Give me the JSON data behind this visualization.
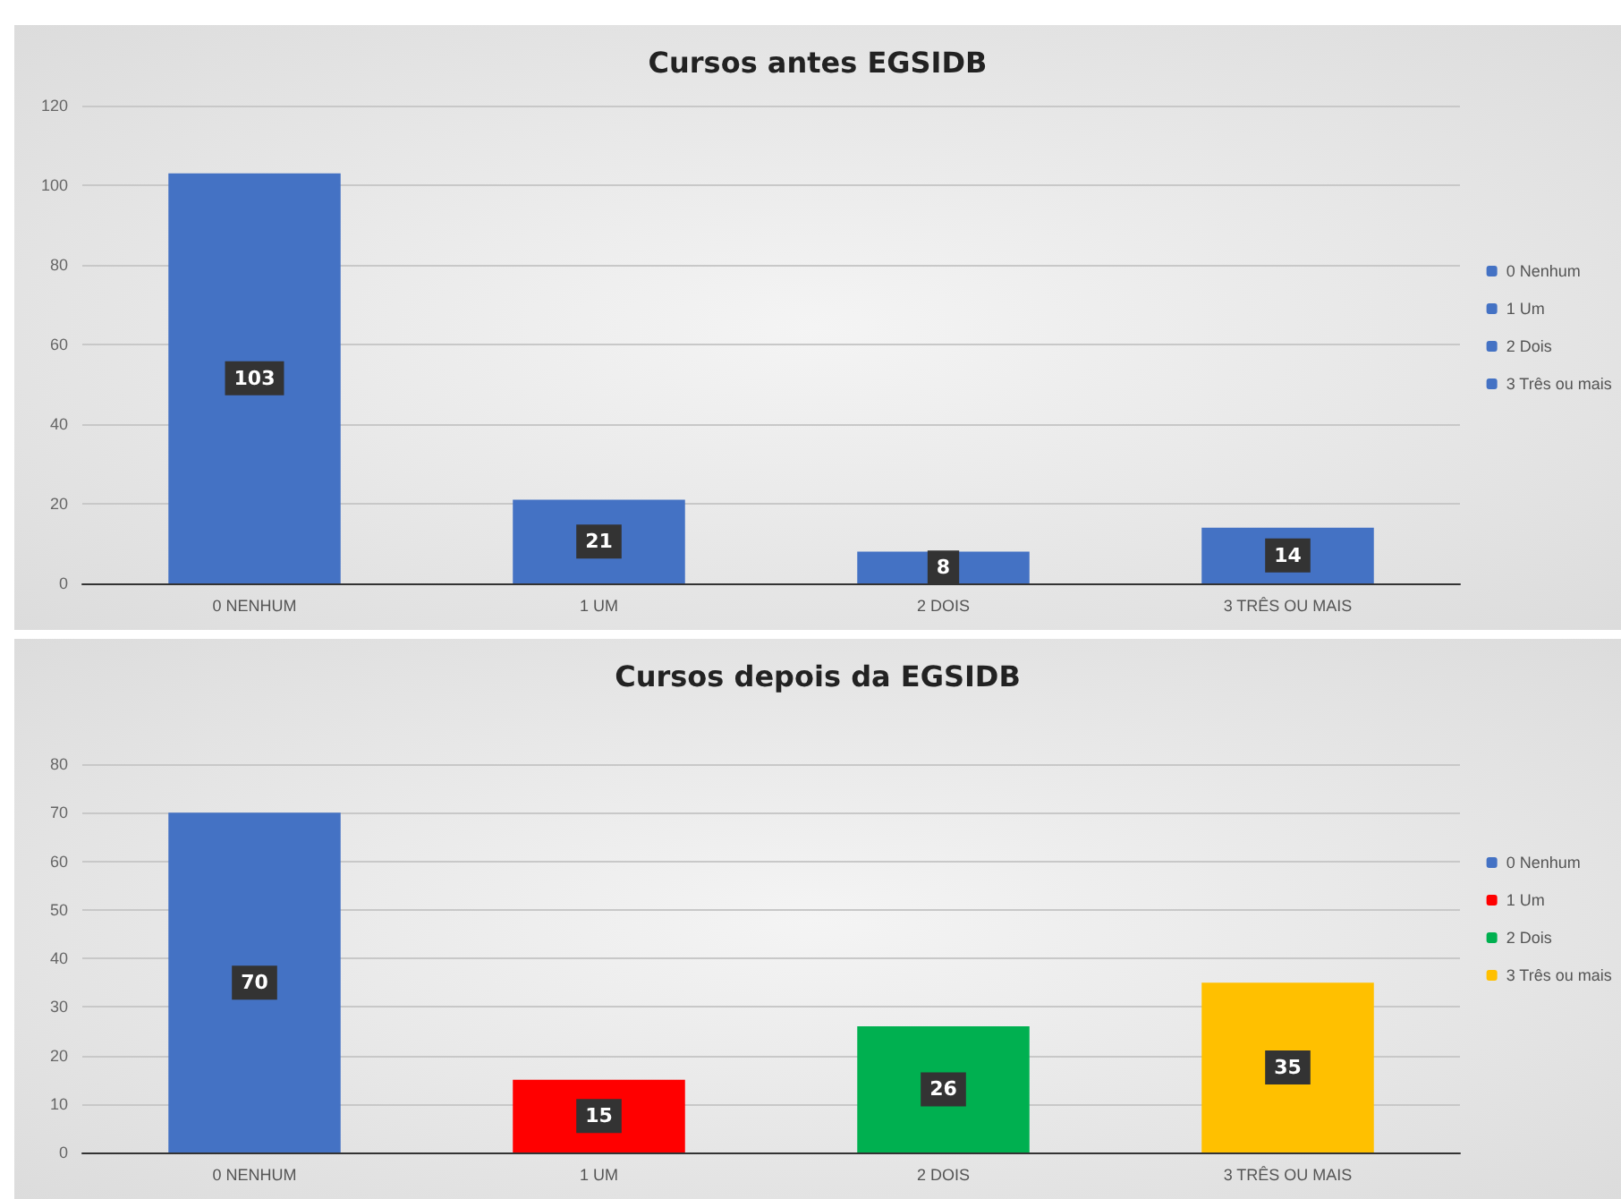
{
  "chart_data": [
    {
      "type": "bar",
      "title": "Cursos antes EGSIDB",
      "categories": [
        "0 NENHUM",
        "1 UM",
        "2 DOIS",
        "3 TRÊS OU MAIS"
      ],
      "stacked": true,
      "series": [
        {
          "name": "0 Nenhum",
          "color": "#4472c4",
          "values": [
            103,
            null,
            null,
            null
          ]
        },
        {
          "name": "1 Um",
          "color": "#4472c4",
          "values": [
            null,
            21,
            null,
            null
          ]
        },
        {
          "name": "2 Dois",
          "color": "#4472c4",
          "values": [
            null,
            null,
            8,
            null
          ]
        },
        {
          "name": "3 Três ou mais",
          "color": "#4472c4",
          "values": [
            null,
            null,
            null,
            14
          ]
        }
      ],
      "ylim": [
        0,
        120
      ],
      "yticks": [
        0,
        20,
        40,
        60,
        80,
        100,
        120
      ],
      "grid": "y",
      "legend": "right",
      "data_labels": true
    },
    {
      "type": "bar",
      "title": "Cursos depois da EGSIDB",
      "categories": [
        "0 NENHUM",
        "1 UM",
        "2 DOIS",
        "3 TRÊS OU MAIS"
      ],
      "stacked": true,
      "series": [
        {
          "name": "0 Nenhum",
          "color": "#4472c4",
          "values": [
            70,
            null,
            null,
            null
          ]
        },
        {
          "name": "1 Um",
          "color": "#ff0000",
          "values": [
            null,
            15,
            null,
            null
          ]
        },
        {
          "name": "2 Dois",
          "color": "#00b050",
          "values": [
            null,
            null,
            26,
            null
          ]
        },
        {
          "name": "3 Três ou mais",
          "color": "#ffc000",
          "values": [
            null,
            null,
            null,
            35
          ]
        }
      ],
      "ylim": [
        0,
        80
      ],
      "yticks": [
        0,
        10,
        20,
        30,
        40,
        50,
        60,
        70,
        80
      ],
      "grid": "y",
      "legend": "right",
      "data_labels": true
    }
  ]
}
